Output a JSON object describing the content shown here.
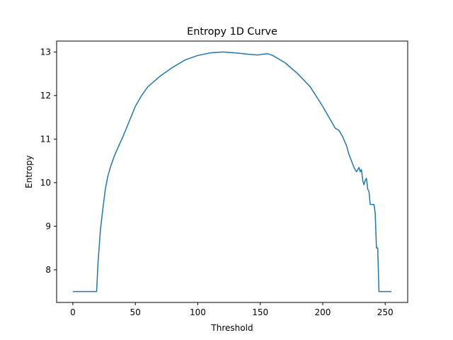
{
  "chart_data": {
    "type": "line",
    "title": "Entropy 1D Curve",
    "xlabel": "Threshold",
    "ylabel": "Entropy",
    "xlim": [
      -13,
      268
    ],
    "ylim": [
      7.25,
      13.25
    ],
    "xticks": [
      0,
      50,
      100,
      150,
      200,
      250
    ],
    "yticks": [
      8,
      9,
      10,
      11,
      12,
      13
    ],
    "grid": false,
    "legend": "none",
    "colors": {
      "line": "#1f77b4",
      "axes": "#000000"
    },
    "series": [
      {
        "x": [
          0,
          19,
          20,
          22,
          24,
          26,
          28,
          30,
          33,
          36,
          40,
          45,
          50,
          55,
          60,
          70,
          80,
          90,
          100,
          110,
          120,
          130,
          140,
          148,
          152,
          156,
          160,
          170,
          180,
          190,
          200,
          205,
          210,
          213,
          216,
          219,
          221,
          223,
          225,
          227,
          228,
          229,
          230,
          231,
          232,
          233,
          234,
          235,
          236,
          237,
          238,
          239,
          240,
          241,
          242,
          243,
          244,
          245,
          246,
          247,
          250,
          255
        ],
        "y": [
          7.5,
          7.5,
          8.1,
          8.9,
          9.4,
          9.85,
          10.15,
          10.35,
          10.6,
          10.8,
          11.05,
          11.4,
          11.75,
          12.0,
          12.2,
          12.45,
          12.65,
          12.82,
          12.92,
          12.98,
          13.0,
          12.98,
          12.95,
          12.93,
          12.95,
          12.96,
          12.92,
          12.75,
          12.5,
          12.2,
          11.75,
          11.5,
          11.25,
          11.2,
          11.05,
          10.85,
          10.65,
          10.5,
          10.35,
          10.25,
          10.3,
          10.35,
          10.25,
          10.3,
          10.05,
          9.95,
          10.05,
          10.1,
          9.85,
          9.8,
          9.5,
          9.5,
          9.5,
          9.5,
          9.3,
          8.5,
          8.5,
          7.5,
          7.5,
          7.5,
          7.5,
          7.5
        ]
      }
    ]
  }
}
